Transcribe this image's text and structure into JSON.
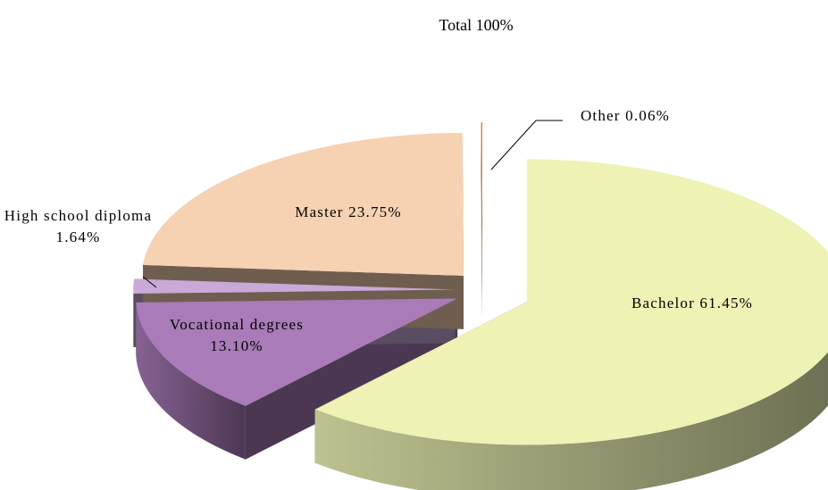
{
  "chart_data": {
    "type": "pie",
    "title": "Total 100%",
    "categories": [
      "Bachelor",
      "Vocational degrees",
      "High school diploma",
      "Master",
      "Other"
    ],
    "values": [
      61.45,
      13.1,
      1.64,
      23.75,
      0.06
    ],
    "value_labels": [
      "61.45%",
      "13.10%",
      "1.64%",
      "23.75%",
      "0.06%"
    ],
    "colors": [
      "#eef2b4",
      "#a97bb8",
      "#c9a9d8",
      "#f6d1b2",
      "#d27a2a"
    ]
  }
}
